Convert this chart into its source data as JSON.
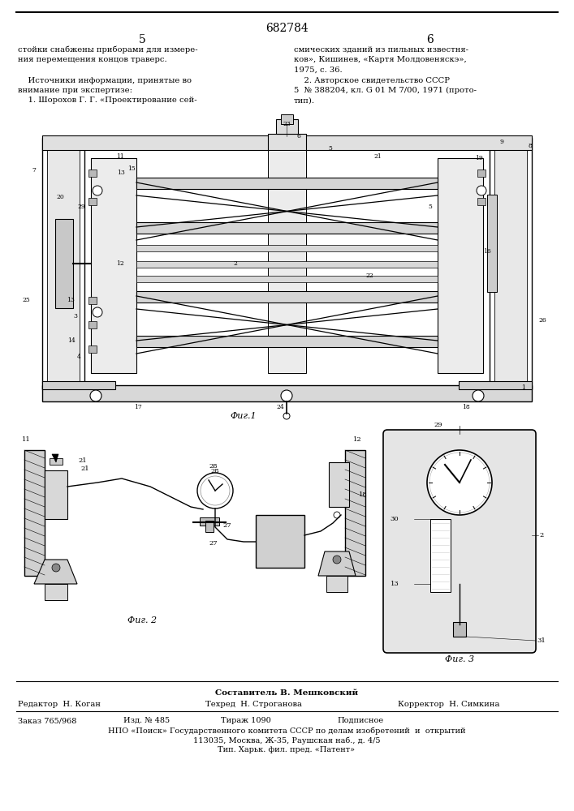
{
  "patent_number": "682784",
  "page_left": "5",
  "page_right": "6",
  "bg_color": "#ffffff",
  "text_color": "#000000",
  "col1_text": [
    "стойки снабжены приборами для измере-",
    "ния перемещения концов траверс.",
    "",
    "    Источники информации, принятые во",
    "внимание при экспертизе:",
    "    1. Шорохов Г. Г. «Проектирование сей-"
  ],
  "col2_text": [
    "смических зданий из пильных известня-",
    "ков», Кишинев, «Картя Молдовеняскэ»,",
    "1975, с. 36.",
    "    2. Авторское свидетельство СССР",
    "5  № 388204, кл. G 01 М 7/00, 1971 (прото-",
    "тип)."
  ],
  "footer_compositor": "Составитель В. Мешковский",
  "footer_editor": "Редактор  Н. Коган",
  "footer_techred": "Техред  Н. Строганова",
  "footer_corrector": "Корректор  Н. Симкина",
  "footer_order": "Заказ 765/968",
  "footer_izd": "Изд. № 485",
  "footer_tirazh": "Тираж 1090",
  "footer_podpisnoe": "Подписное",
  "footer_npo": "НПО «Поиск» Государственного комитета СССР по делам изобретений  и  открытий",
  "footer_address": "113035, Москва, Ж-35, Раушская наб., д. 4/5",
  "footer_tip": "Тип. Харьк. фил. пред. «Патент»",
  "fig1_label": "Фиг.1",
  "fig2_label": "Фиг. 2",
  "fig3_label": "Фиг. 3"
}
